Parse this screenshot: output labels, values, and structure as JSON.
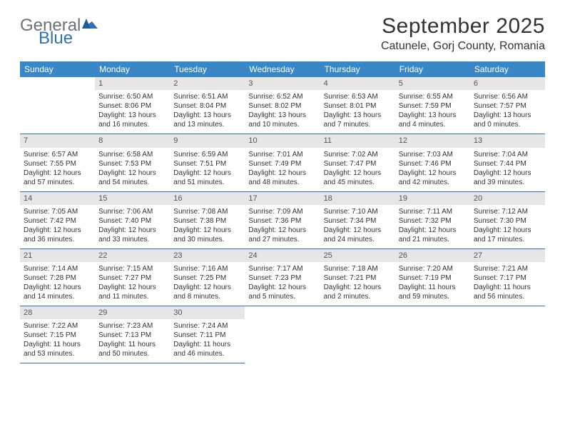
{
  "logo": {
    "general": "General",
    "blue": "Blue"
  },
  "title": "September 2025",
  "location": "Catunele, Gorj County, Romania",
  "colors": {
    "header_bg": "#3a87c8",
    "header_text": "#ffffff",
    "daynum_bg": "#e6e6e6",
    "daynum_text": "#555555",
    "border": "#2f71b8",
    "body_text": "#333333",
    "logo_general": "#6b7278",
    "logo_blue": "#2f71b8"
  },
  "weekdays": [
    "Sunday",
    "Monday",
    "Tuesday",
    "Wednesday",
    "Thursday",
    "Friday",
    "Saturday"
  ],
  "weeks": [
    [
      null,
      {
        "n": "1",
        "sunrise": "6:50 AM",
        "sunset": "8:06 PM",
        "daylight": "13 hours and 16 minutes."
      },
      {
        "n": "2",
        "sunrise": "6:51 AM",
        "sunset": "8:04 PM",
        "daylight": "13 hours and 13 minutes."
      },
      {
        "n": "3",
        "sunrise": "6:52 AM",
        "sunset": "8:02 PM",
        "daylight": "13 hours and 10 minutes."
      },
      {
        "n": "4",
        "sunrise": "6:53 AM",
        "sunset": "8:01 PM",
        "daylight": "13 hours and 7 minutes."
      },
      {
        "n": "5",
        "sunrise": "6:55 AM",
        "sunset": "7:59 PM",
        "daylight": "13 hours and 4 minutes."
      },
      {
        "n": "6",
        "sunrise": "6:56 AM",
        "sunset": "7:57 PM",
        "daylight": "13 hours and 0 minutes."
      }
    ],
    [
      {
        "n": "7",
        "sunrise": "6:57 AM",
        "sunset": "7:55 PM",
        "daylight": "12 hours and 57 minutes."
      },
      {
        "n": "8",
        "sunrise": "6:58 AM",
        "sunset": "7:53 PM",
        "daylight": "12 hours and 54 minutes."
      },
      {
        "n": "9",
        "sunrise": "6:59 AM",
        "sunset": "7:51 PM",
        "daylight": "12 hours and 51 minutes."
      },
      {
        "n": "10",
        "sunrise": "7:01 AM",
        "sunset": "7:49 PM",
        "daylight": "12 hours and 48 minutes."
      },
      {
        "n": "11",
        "sunrise": "7:02 AM",
        "sunset": "7:47 PM",
        "daylight": "12 hours and 45 minutes."
      },
      {
        "n": "12",
        "sunrise": "7:03 AM",
        "sunset": "7:46 PM",
        "daylight": "12 hours and 42 minutes."
      },
      {
        "n": "13",
        "sunrise": "7:04 AM",
        "sunset": "7:44 PM",
        "daylight": "12 hours and 39 minutes."
      }
    ],
    [
      {
        "n": "14",
        "sunrise": "7:05 AM",
        "sunset": "7:42 PM",
        "daylight": "12 hours and 36 minutes."
      },
      {
        "n": "15",
        "sunrise": "7:06 AM",
        "sunset": "7:40 PM",
        "daylight": "12 hours and 33 minutes."
      },
      {
        "n": "16",
        "sunrise": "7:08 AM",
        "sunset": "7:38 PM",
        "daylight": "12 hours and 30 minutes."
      },
      {
        "n": "17",
        "sunrise": "7:09 AM",
        "sunset": "7:36 PM",
        "daylight": "12 hours and 27 minutes."
      },
      {
        "n": "18",
        "sunrise": "7:10 AM",
        "sunset": "7:34 PM",
        "daylight": "12 hours and 24 minutes."
      },
      {
        "n": "19",
        "sunrise": "7:11 AM",
        "sunset": "7:32 PM",
        "daylight": "12 hours and 21 minutes."
      },
      {
        "n": "20",
        "sunrise": "7:12 AM",
        "sunset": "7:30 PM",
        "daylight": "12 hours and 17 minutes."
      }
    ],
    [
      {
        "n": "21",
        "sunrise": "7:14 AM",
        "sunset": "7:28 PM",
        "daylight": "12 hours and 14 minutes."
      },
      {
        "n": "22",
        "sunrise": "7:15 AM",
        "sunset": "7:27 PM",
        "daylight": "12 hours and 11 minutes."
      },
      {
        "n": "23",
        "sunrise": "7:16 AM",
        "sunset": "7:25 PM",
        "daylight": "12 hours and 8 minutes."
      },
      {
        "n": "24",
        "sunrise": "7:17 AM",
        "sunset": "7:23 PM",
        "daylight": "12 hours and 5 minutes."
      },
      {
        "n": "25",
        "sunrise": "7:18 AM",
        "sunset": "7:21 PM",
        "daylight": "12 hours and 2 minutes."
      },
      {
        "n": "26",
        "sunrise": "7:20 AM",
        "sunset": "7:19 PM",
        "daylight": "11 hours and 59 minutes."
      },
      {
        "n": "27",
        "sunrise": "7:21 AM",
        "sunset": "7:17 PM",
        "daylight": "11 hours and 56 minutes."
      }
    ],
    [
      {
        "n": "28",
        "sunrise": "7:22 AM",
        "sunset": "7:15 PM",
        "daylight": "11 hours and 53 minutes."
      },
      {
        "n": "29",
        "sunrise": "7:23 AM",
        "sunset": "7:13 PM",
        "daylight": "11 hours and 50 minutes."
      },
      {
        "n": "30",
        "sunrise": "7:24 AM",
        "sunset": "7:11 PM",
        "daylight": "11 hours and 46 minutes."
      },
      null,
      null,
      null,
      null
    ]
  ],
  "labels": {
    "sunrise": "Sunrise:",
    "sunset": "Sunset:",
    "daylight": "Daylight:"
  }
}
